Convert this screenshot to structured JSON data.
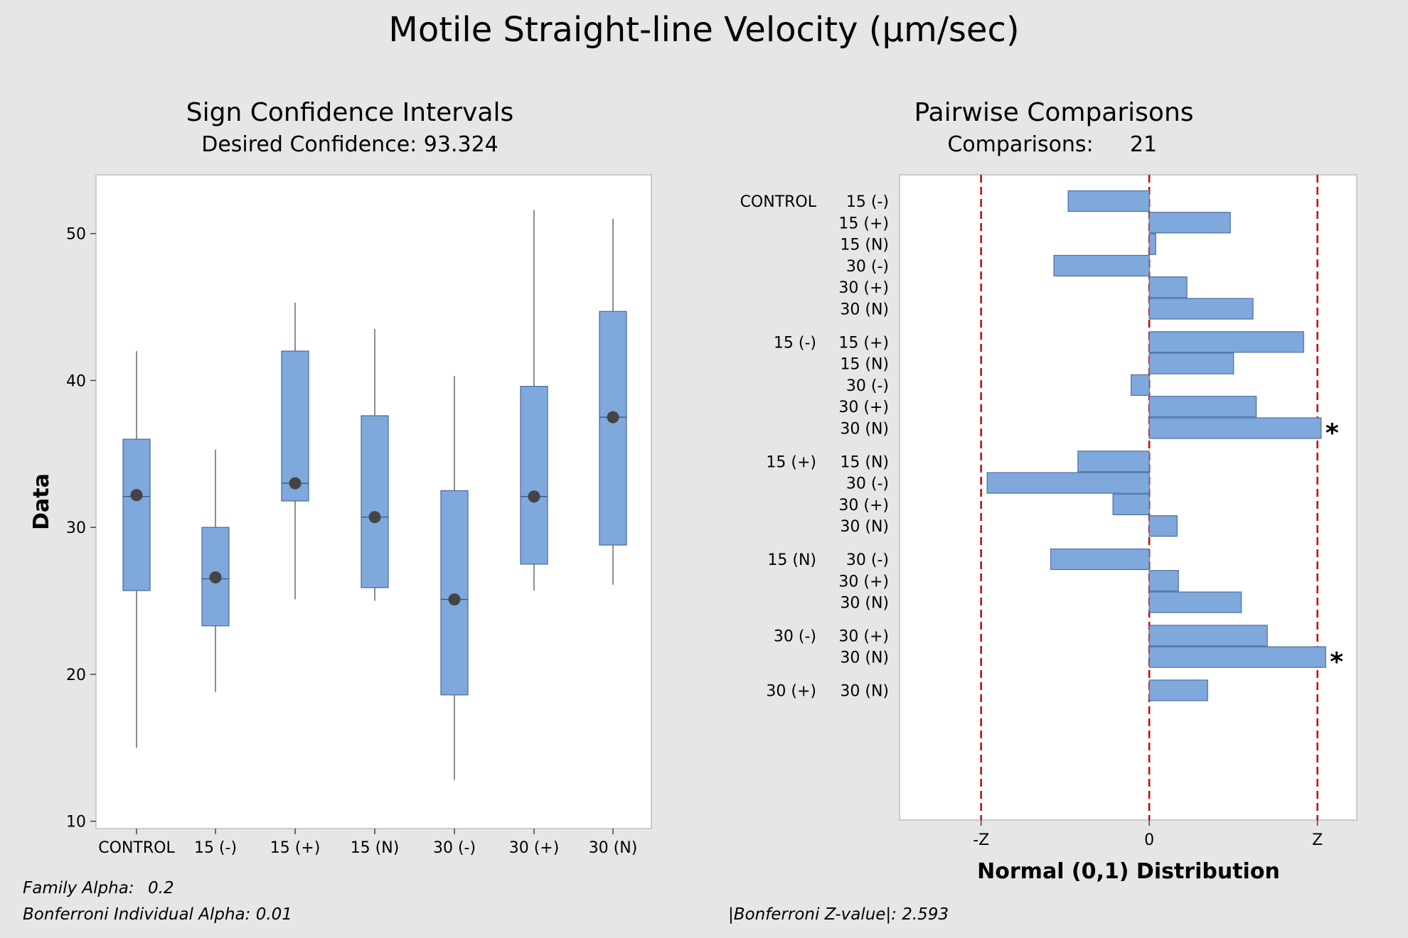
{
  "title": "Motile Straight-line Velocity (µm/sec)",
  "left_panel": {
    "title": "Sign Confidence Intervals",
    "subtitle": "Desired Confidence: 93.324"
  },
  "right_panel": {
    "title": "Pairwise Comparisons",
    "subtitle_label": "Comparisons:",
    "subtitle_value": "21"
  },
  "footnotes": {
    "family_alpha_label": "Family Alpha:",
    "family_alpha_value": "0.2",
    "bonferroni_alpha": "Bonferroni Individual Alpha: 0.01",
    "bonferroni_z": "|Bonferroni Z-value|: 2.593"
  },
  "colors": {
    "box_fill": "#7fa8dc",
    "box_stroke": "#4f6f9f",
    "median_dot": "#444444",
    "ref_line": "#cc0000"
  },
  "chart_data": [
    {
      "type": "box",
      "title": "Sign Confidence Intervals",
      "ylabel": "Data",
      "xlabel": "",
      "ylim": [
        9.5,
        54
      ],
      "yticks": [
        10,
        20,
        30,
        40,
        50
      ],
      "categories": [
        "CONTROL",
        "15 (-)",
        "15 (+)",
        "15 (N)",
        "30 (-)",
        "30 (+)",
        "30 (N)"
      ],
      "boxes": [
        {
          "min": 15.0,
          "q1": 25.7,
          "median": 32.1,
          "q3": 36.0,
          "max": 42.0,
          "center": 32.2
        },
        {
          "min": 18.8,
          "q1": 23.3,
          "median": 26.5,
          "q3": 30.0,
          "max": 35.3,
          "center": 26.6
        },
        {
          "min": 25.1,
          "q1": 31.8,
          "median": 33.0,
          "q3": 42.0,
          "max": 45.3,
          "center": 33.0
        },
        {
          "min": 25.0,
          "q1": 25.9,
          "median": 30.7,
          "q3": 37.6,
          "max": 43.5,
          "center": 30.7
        },
        {
          "min": 12.8,
          "q1": 18.6,
          "median": 25.1,
          "q3": 32.5,
          "max": 40.3,
          "center": 25.1
        },
        {
          "min": 25.7,
          "q1": 27.5,
          "median": 32.1,
          "q3": 39.6,
          "max": 51.6,
          "center": 32.1
        },
        {
          "min": 26.1,
          "q1": 28.8,
          "median": 37.5,
          "q3": 44.7,
          "max": 51.0,
          "center": 37.5
        }
      ]
    },
    {
      "type": "bar",
      "orientation": "horizontal",
      "title": "Pairwise Comparisons",
      "xlabel": "Normal (0,1) Distribution",
      "xlim": [
        -3.85,
        3.2
      ],
      "z_value": 2.593,
      "xticks": [
        "-Z",
        "0",
        "Z"
      ],
      "groups": [
        {
          "label": "CONTROL",
          "comparisons": [
            {
              "label": "15 (-)",
              "value": -1.25,
              "significant": false
            },
            {
              "label": "15 (+)",
              "value": 1.25,
              "significant": false
            },
            {
              "label": "15 (N)",
              "value": 0.1,
              "significant": false
            },
            {
              "label": "30 (-)",
              "value": -1.47,
              "significant": false
            },
            {
              "label": "30 (+)",
              "value": 0.58,
              "significant": false
            },
            {
              "label": "30 (N)",
              "value": 1.6,
              "significant": false
            }
          ]
        },
        {
          "label": "15 (-)",
          "comparisons": [
            {
              "label": "15 (+)",
              "value": 2.38,
              "significant": false
            },
            {
              "label": "15 (N)",
              "value": 1.3,
              "significant": false
            },
            {
              "label": "30 (-)",
              "value": -0.28,
              "significant": false
            },
            {
              "label": "30 (+)",
              "value": 1.65,
              "significant": false
            },
            {
              "label": "30 (N)",
              "value": 2.65,
              "significant": true
            }
          ]
        },
        {
          "label": "15 (+)",
          "comparisons": [
            {
              "label": "15 (N)",
              "value": -1.1,
              "significant": false
            },
            {
              "label": "30 (-)",
              "value": -2.5,
              "significant": false
            },
            {
              "label": "30 (+)",
              "value": -0.56,
              "significant": false
            },
            {
              "label": "30 (N)",
              "value": 0.43,
              "significant": false
            }
          ]
        },
        {
          "label": "15 (N)",
          "comparisons": [
            {
              "label": "30 (-)",
              "value": -1.52,
              "significant": false
            },
            {
              "label": "30 (+)",
              "value": 0.45,
              "significant": false
            },
            {
              "label": "30 (N)",
              "value": 1.42,
              "significant": false
            }
          ]
        },
        {
          "label": "30 (-)",
          "comparisons": [
            {
              "label": "30 (+)",
              "value": 1.82,
              "significant": false
            },
            {
              "label": "30 (N)",
              "value": 2.72,
              "significant": true
            }
          ]
        },
        {
          "label": "30 (+)",
          "comparisons": [
            {
              "label": "30 (N)",
              "value": 0.9,
              "significant": false
            }
          ]
        }
      ]
    }
  ]
}
